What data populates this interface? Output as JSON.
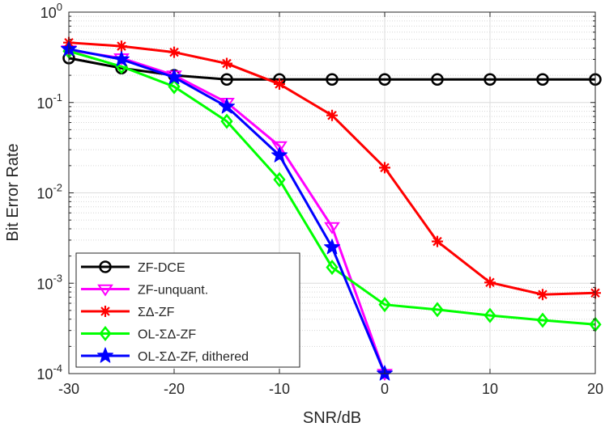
{
  "chart_data": {
    "type": "line",
    "title": "",
    "xlabel": "SNR/dB",
    "ylabel": "Bit Error Rate",
    "x_scale": "linear",
    "y_scale": "log",
    "xlim": [
      -30,
      20
    ],
    "ylim": [
      0.0001,
      1
    ],
    "grid": true,
    "legend_position": "bottom-left",
    "x_ticks": [
      {
        "value": -30,
        "label": "-30"
      },
      {
        "value": -20,
        "label": "-20"
      },
      {
        "value": -10,
        "label": "-10"
      },
      {
        "value": 0,
        "label": "0"
      },
      {
        "value": 10,
        "label": "10"
      },
      {
        "value": 20,
        "label": "20"
      }
    ],
    "y_ticks": [
      {
        "value": 1,
        "base": "10",
        "exp": "0"
      },
      {
        "value": 0.1,
        "base": "10",
        "exp": "-1"
      },
      {
        "value": 0.01,
        "base": "10",
        "exp": "-2"
      },
      {
        "value": 0.001,
        "base": "10",
        "exp": "-3"
      },
      {
        "value": 0.0001,
        "base": "10",
        "exp": "-4"
      }
    ],
    "series": [
      {
        "name": "ZF-DCE",
        "color": "#000000",
        "marker": "circle",
        "x": [
          -30,
          -25,
          -20,
          -15,
          -10,
          -5,
          0,
          5,
          10,
          15,
          20
        ],
        "values": [
          0.31,
          0.24,
          0.2,
          0.18,
          0.18,
          0.18,
          0.18,
          0.18,
          0.18,
          0.18,
          0.18
        ]
      },
      {
        "name": "ZF-unquant.",
        "color": "#ff00ff",
        "marker": "triangle-down",
        "x": [
          -30,
          -25,
          -20,
          -15,
          -10,
          -5,
          0
        ],
        "values": [
          0.38,
          0.31,
          0.2,
          0.1,
          0.033,
          0.0042,
          0.0001
        ]
      },
      {
        "name": "ΣΔ-ZF",
        "color": "#ff0000",
        "marker": "asterisk",
        "x": [
          -30,
          -25,
          -20,
          -15,
          -10,
          -5,
          0,
          5,
          10,
          15,
          20
        ],
        "values": [
          0.46,
          0.42,
          0.36,
          0.27,
          0.16,
          0.072,
          0.019,
          0.0029,
          0.00102,
          0.00075,
          0.00078
        ]
      },
      {
        "name": "OL-ΣΔ-ZF",
        "color": "#00ff00",
        "marker": "diamond",
        "x": [
          -30,
          -25,
          -20,
          -15,
          -10,
          -5,
          0,
          5,
          10,
          15,
          20
        ],
        "values": [
          0.37,
          0.25,
          0.15,
          0.062,
          0.014,
          0.0015,
          0.00058,
          0.00051,
          0.00044,
          0.00039,
          0.00035
        ]
      },
      {
        "name": "OL-ΣΔ-ZF, dithered",
        "color": "#0000ff",
        "marker": "star",
        "x": [
          -30,
          -25,
          -20,
          -15,
          -10,
          -5,
          0
        ],
        "values": [
          0.39,
          0.3,
          0.19,
          0.09,
          0.026,
          0.0025,
          0.0001
        ]
      }
    ]
  }
}
